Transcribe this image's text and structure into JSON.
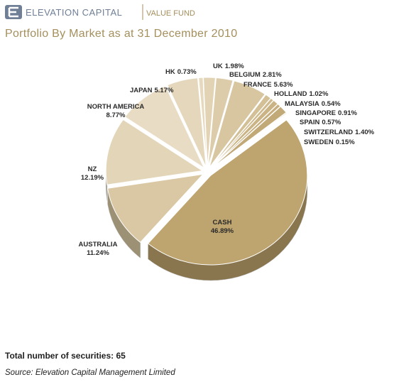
{
  "header": {
    "brand": "ELEVATION CAPITAL",
    "fund": "VALUE FUND"
  },
  "chart_data": {
    "type": "pie",
    "title": "Portfolio By Market as at 31 December 2010",
    "categories": [
      "HK",
      "UK",
      "BELGIUM",
      "FRANCE",
      "HOLLAND",
      "MALAYSIA",
      "SINGAPORE",
      "SPAIN",
      "SWITZERLAND",
      "SWEDEN",
      "CASH",
      "AUSTRALIA",
      "NZ",
      "NORTH AMERICA",
      "JAPAN"
    ],
    "values": [
      0.73,
      1.98,
      2.81,
      5.63,
      1.02,
      0.54,
      0.91,
      0.57,
      1.4,
      0.15,
      46.89,
      11.24,
      12.19,
      8.77,
      5.17
    ],
    "value_labels": [
      "0.73%",
      "1.98%",
      "2.81%",
      "5.63%",
      "1.02%",
      "0.54%",
      "0.91%",
      "0.57%",
      "1.40%",
      "0.15%",
      "46.89%",
      "11.24%",
      "12.19%",
      "8.77%",
      "5.17%"
    ],
    "colors": [
      "#e6d9bd",
      "#e2d3b4",
      "#ddcca9",
      "#d8c6a0",
      "#d4c097",
      "#cfba8e",
      "#cab486",
      "#c6ae7f",
      "#c2a978",
      "#bea472",
      "#bea46e",
      "#d9c8a3",
      "#e3d5b8",
      "#e8dcc4",
      "#e4d7bc"
    ]
  },
  "footer": {
    "securities": "Total number of securities: 65",
    "source": "Source: Elevation Capital Management Limited"
  }
}
